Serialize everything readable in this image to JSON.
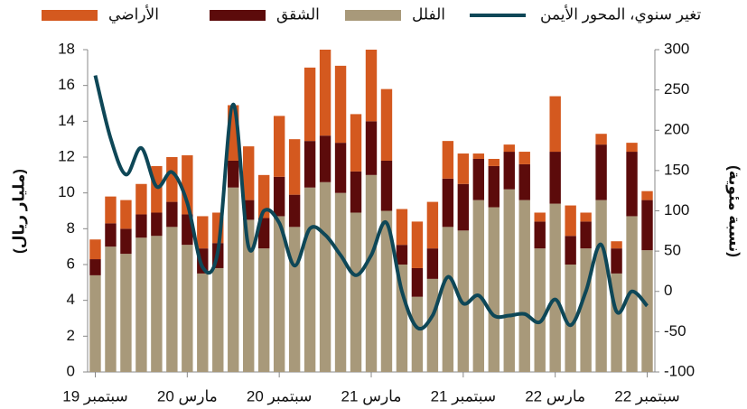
{
  "chart_data": {
    "type": "stacked-bar-line",
    "y_label": "(مليار ريال)",
    "y2_label": "(نسبة مئوية)",
    "categories": [
      "سبتمبر 19",
      null,
      null,
      null,
      null,
      null,
      "مارس 20",
      null,
      null,
      null,
      null,
      null,
      "سبتمبر 20",
      null,
      null,
      null,
      null,
      null,
      "مارس 21",
      null,
      null,
      null,
      null,
      null,
      "سبتمبر 21",
      null,
      null,
      null,
      null,
      null,
      "مارس 22",
      null,
      null,
      null,
      null,
      null,
      "سبتمبر 22"
    ],
    "series": [
      {
        "name": "الفلل",
        "color": "#a8997a",
        "values": [
          5.4,
          7.0,
          6.6,
          7.5,
          7.6,
          8.1,
          7.1,
          5.5,
          5.8,
          10.3,
          8.5,
          6.9,
          8.7,
          8.1,
          10.3,
          10.6,
          10.0,
          8.9,
          11.0,
          9.0,
          6.0,
          4.2,
          5.2,
          8.1,
          7.9,
          9.6,
          9.2,
          10.2,
          9.6,
          6.9,
          9.4,
          6.0,
          6.9,
          9.6,
          5.5,
          8.7,
          6.8
        ]
      },
      {
        "name": "الشقق",
        "color": "#5c0b0b",
        "values": [
          0.9,
          1.3,
          1.4,
          1.3,
          1.3,
          1.4,
          1.7,
          1.4,
          1.4,
          1.5,
          1.1,
          1.7,
          2.2,
          1.8,
          2.6,
          2.6,
          2.8,
          2.3,
          3.0,
          2.8,
          1.1,
          1.6,
          1.7,
          2.7,
          2.6,
          2.3,
          2.3,
          2.1,
          2.0,
          1.5,
          2.9,
          1.6,
          1.5,
          3.1,
          1.4,
          3.6,
          2.8
        ]
      },
      {
        "name": "الأراضي",
        "color": "#d4591f",
        "values": [
          1.1,
          1.5,
          1.6,
          1.7,
          2.6,
          2.5,
          3.3,
          1.8,
          1.7,
          3.1,
          3.0,
          2.4,
          3.4,
          3.1,
          4.1,
          4.8,
          4.3,
          3.2,
          4.0,
          4.0,
          2.0,
          2.6,
          2.6,
          2.1,
          1.7,
          0.3,
          0.4,
          0.4,
          0.7,
          0.5,
          3.1,
          1.7,
          0.5,
          0.6,
          0.4,
          0.5,
          0.5
        ]
      },
      {
        "name": "تغير سنوي، المحور الأيمن",
        "color": "#0e4757",
        "axis": "y2",
        "values": [
          268,
          190,
          145,
          178,
          130,
          148,
          110,
          30,
          50,
          232,
          55,
          100,
          85,
          32,
          78,
          70,
          45,
          20,
          45,
          85,
          0,
          -45,
          -30,
          18,
          -15,
          -5,
          -30,
          -30,
          -28,
          -38,
          -10,
          -42,
          0,
          58,
          -25,
          0,
          -18
        ]
      }
    ],
    "ylim": [
      0,
      18
    ],
    "yticks": [
      0,
      2,
      4,
      6,
      8,
      10,
      12,
      14,
      16,
      18
    ],
    "y2lim": [
      -100,
      300
    ],
    "y2ticks": [
      -100,
      -50,
      0,
      50,
      100,
      150,
      200,
      250,
      300
    ]
  }
}
